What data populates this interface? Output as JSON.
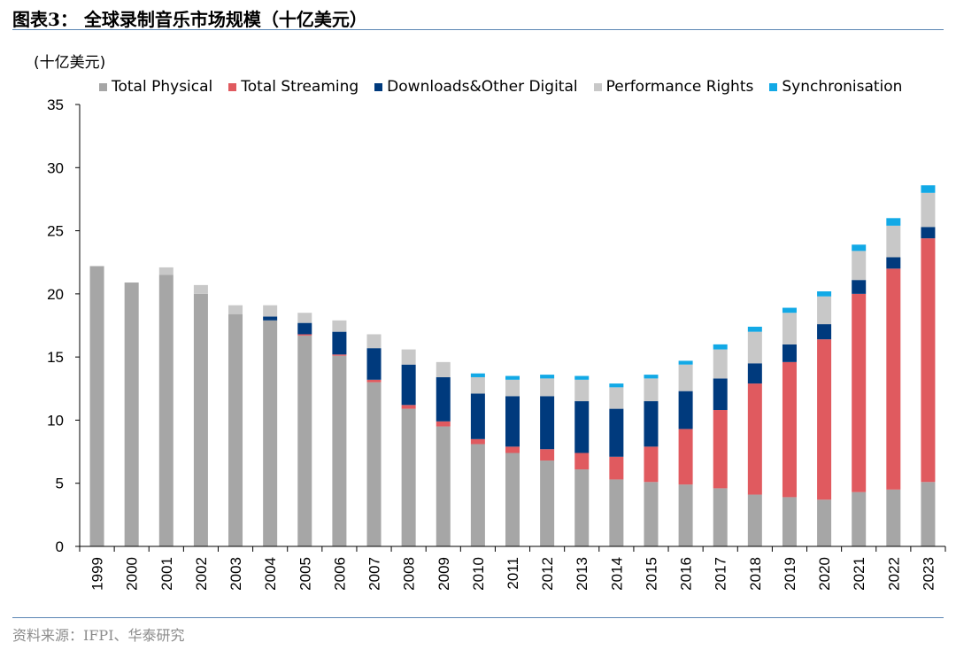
{
  "header": {
    "title": "图表3：  全球录制音乐市场规模（十亿美元）"
  },
  "unit_label": "(十亿美元)",
  "footer": {
    "source": "资料来源：IFPI、华泰研究"
  },
  "colors": {
    "physical": "#a6a6a6",
    "streaming": "#e05a5f",
    "downloads": "#003a7d",
    "performance": "#c8c8c8",
    "sync": "#12a9e6",
    "axis": "#000000"
  },
  "chart_data": {
    "type": "bar",
    "stacked": true,
    "categories": [
      "1999",
      "2000",
      "2001",
      "2002",
      "2003",
      "2004",
      "2005",
      "2006",
      "2007",
      "2008",
      "2009",
      "2010",
      "2011",
      "2012",
      "2013",
      "2014",
      "2015",
      "2016",
      "2017",
      "2018",
      "2019",
      "2020",
      "2021",
      "2022",
      "2023"
    ],
    "ylim": [
      0,
      35
    ],
    "yticks": [
      0,
      5,
      10,
      15,
      20,
      25,
      30,
      35
    ],
    "legend_position": "top",
    "grid": false,
    "series": [
      {
        "name": "Total Physical",
        "color_key": "physical",
        "values": [
          22.2,
          20.9,
          21.5,
          20.0,
          18.4,
          17.9,
          16.7,
          15.1,
          13.0,
          10.9,
          9.5,
          8.1,
          7.4,
          6.8,
          6.1,
          5.3,
          5.1,
          4.9,
          4.6,
          4.1,
          3.9,
          3.7,
          4.3,
          4.5,
          5.1
        ]
      },
      {
        "name": "Total Streaming",
        "color_key": "streaming",
        "values": [
          0,
          0,
          0,
          0,
          0,
          0,
          0.1,
          0.1,
          0.2,
          0.3,
          0.4,
          0.4,
          0.5,
          0.9,
          1.3,
          1.8,
          2.8,
          4.4,
          6.2,
          8.8,
          10.7,
          12.7,
          15.7,
          17.5,
          19.3
        ]
      },
      {
        "name": "Downloads&Other Digital",
        "color_key": "downloads",
        "values": [
          0,
          0,
          0,
          0,
          0,
          0.3,
          0.9,
          1.8,
          2.5,
          3.2,
          3.5,
          3.6,
          4.0,
          4.2,
          4.1,
          3.8,
          3.6,
          3.0,
          2.5,
          1.6,
          1.4,
          1.2,
          1.1,
          0.9,
          0.9
        ]
      },
      {
        "name": "Performance Rights",
        "color_key": "performance",
        "values": [
          0,
          0,
          0.6,
          0.7,
          0.7,
          0.9,
          0.8,
          0.9,
          1.1,
          1.2,
          1.2,
          1.3,
          1.3,
          1.4,
          1.7,
          1.7,
          1.8,
          2.1,
          2.3,
          2.5,
          2.5,
          2.2,
          2.3,
          2.5,
          2.7
        ]
      },
      {
        "name": "Synchronisation",
        "color_key": "sync",
        "values": [
          0,
          0,
          0,
          0,
          0,
          0,
          0,
          0,
          0,
          0,
          0,
          0.3,
          0.3,
          0.3,
          0.3,
          0.3,
          0.3,
          0.3,
          0.4,
          0.4,
          0.4,
          0.4,
          0.5,
          0.6,
          0.6
        ]
      }
    ]
  }
}
